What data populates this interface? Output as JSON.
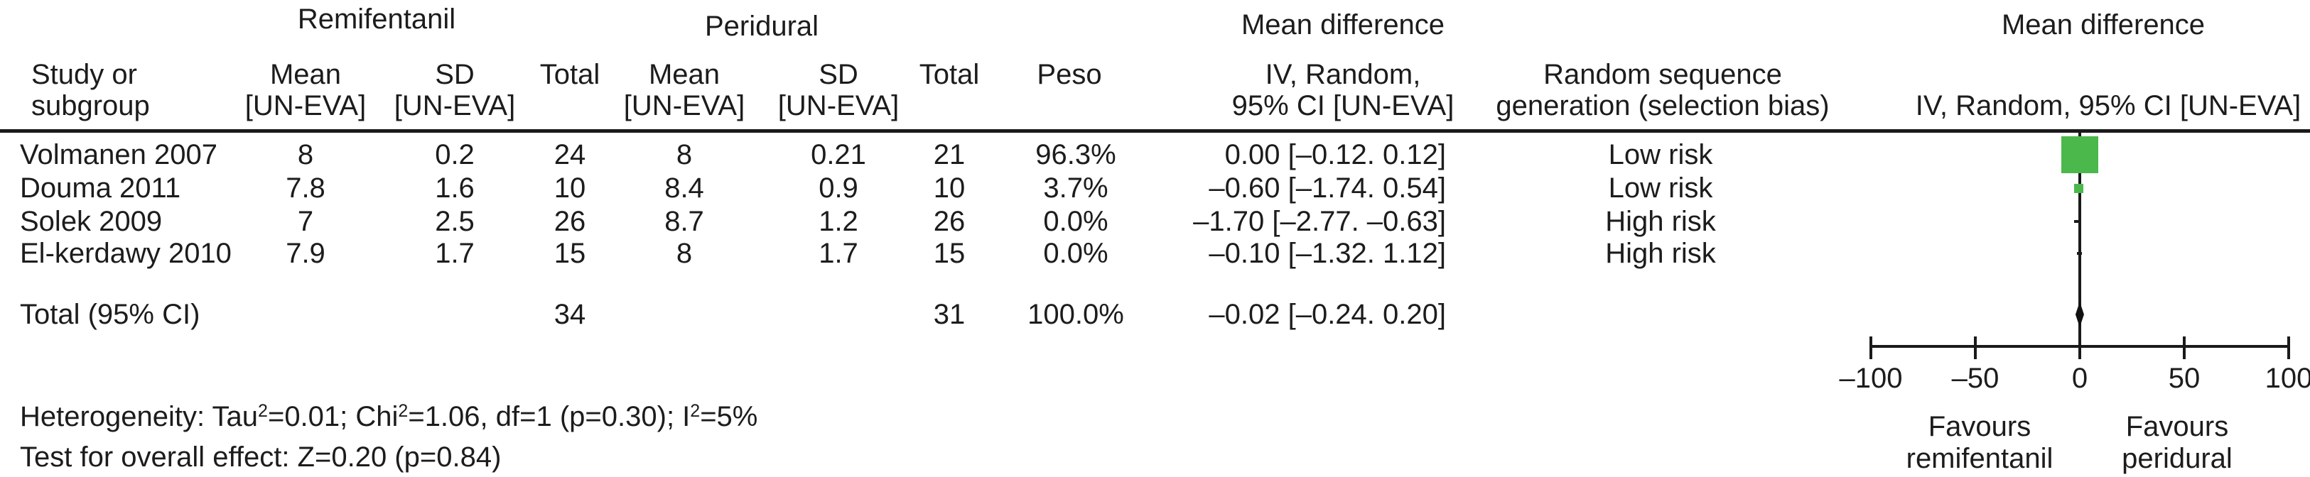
{
  "figure": {
    "group_headers": {
      "remifentanil": "Remifentanil",
      "peridural": "Peridural",
      "mean_difference_left": "Mean difference",
      "mean_difference_right": "Mean difference"
    },
    "col_headers": {
      "study_l1": "Study or",
      "study_l2": "subgroup",
      "mean": "Mean",
      "sd": "SD",
      "total": "Total",
      "unit": "[UN-EVA]",
      "peso": "Peso",
      "iv_l1": "IV, Random,",
      "iv_l2": "95% CI [UN-EVA]",
      "risk_l1": "Random sequence",
      "risk_l2": "generation (selection bias)",
      "iv_right": "IV, Random, 95% CI [UN-EVA]"
    }
  },
  "rows": [
    {
      "study": "Volmanen 2007",
      "mean_r": "8",
      "sd_r": "0.2",
      "total_r": "24",
      "mean_p": "8",
      "sd_p": "0.21",
      "total_p": "21",
      "weight": "96.3%",
      "md_ci": "0.00 [–0.12. 0.12]",
      "risk": "Low risk"
    },
    {
      "study": "Douma 2011",
      "mean_r": "7.8",
      "sd_r": "1.6",
      "total_r": "10",
      "mean_p": "8.4",
      "sd_p": "0.9",
      "total_p": "10",
      "weight": "3.7%",
      "md_ci": "–0.60 [–1.74. 0.54]",
      "risk": "Low risk"
    },
    {
      "study": "Solek 2009",
      "mean_r": "7",
      "sd_r": "2.5",
      "total_r": "26",
      "mean_p": "8.7",
      "sd_p": "1.2",
      "total_p": "26",
      "weight": "0.0%",
      "md_ci": "–1.70 [–2.77. –0.63]",
      "risk": "High risk"
    },
    {
      "study": "El-kerdawy 2010",
      "mean_r": "7.9",
      "sd_r": "1.7",
      "total_r": "15",
      "mean_p": "8",
      "sd_p": "1.7",
      "total_p": "15",
      "weight": "0.0%",
      "md_ci": "–0.10 [–1.32. 1.12]",
      "risk": "High risk"
    }
  ],
  "total_row": {
    "label": "Total (95% CI)",
    "total_r": "34",
    "total_p": "31",
    "weight": "100.0%",
    "md_ci": "–0.02 [–0.24. 0.20]"
  },
  "footer": {
    "het_1": "Heterogeneity: Tau",
    "sup2": "2",
    "het_2": "=0.01; Chi",
    "het_3": "=1.06, df=1 (p=0.30); I",
    "het_4": "=5%",
    "test": "Test for overall effect: Z=0.20 (p=0.84)"
  },
  "chart_data": {
    "type": "forest",
    "title": "Mean difference, IV, Random, 95% CI [UN-EVA]",
    "x_range": [
      -100,
      100
    ],
    "x_ticks": [
      -100,
      -50,
      0,
      50,
      100
    ],
    "favours_left": [
      "Favours",
      "remifentanil"
    ],
    "favours_right": [
      "Favours",
      "peridural"
    ],
    "marker_color": "#4bb84c",
    "line_color": "#1a1a1a",
    "studies": [
      {
        "name": "Volmanen 2007",
        "md": 0.0,
        "ci": [
          -0.12,
          0.12
        ],
        "weight_pct": 96.3,
        "risk": "Low risk"
      },
      {
        "name": "Douma 2011",
        "md": -0.6,
        "ci": [
          -1.74,
          0.54
        ],
        "weight_pct": 3.7,
        "risk": "Low risk"
      },
      {
        "name": "Solek 2009",
        "md": -1.7,
        "ci": [
          -2.77,
          -0.63
        ],
        "weight_pct": 0.0,
        "risk": "High risk"
      },
      {
        "name": "El-kerdawy 2010",
        "md": -0.1,
        "ci": [
          -1.32,
          1.12
        ],
        "weight_pct": 0.0,
        "risk": "High risk"
      }
    ],
    "total": {
      "md": -0.02,
      "ci": [
        -0.24,
        0.2
      ],
      "weight_pct": 100.0
    },
    "heterogeneity": "Tau2=0.01; Chi2=1.06, df=1 (p=0.30); I2=5%",
    "overall_effect": "Z=0.20 (p=0.84)"
  }
}
